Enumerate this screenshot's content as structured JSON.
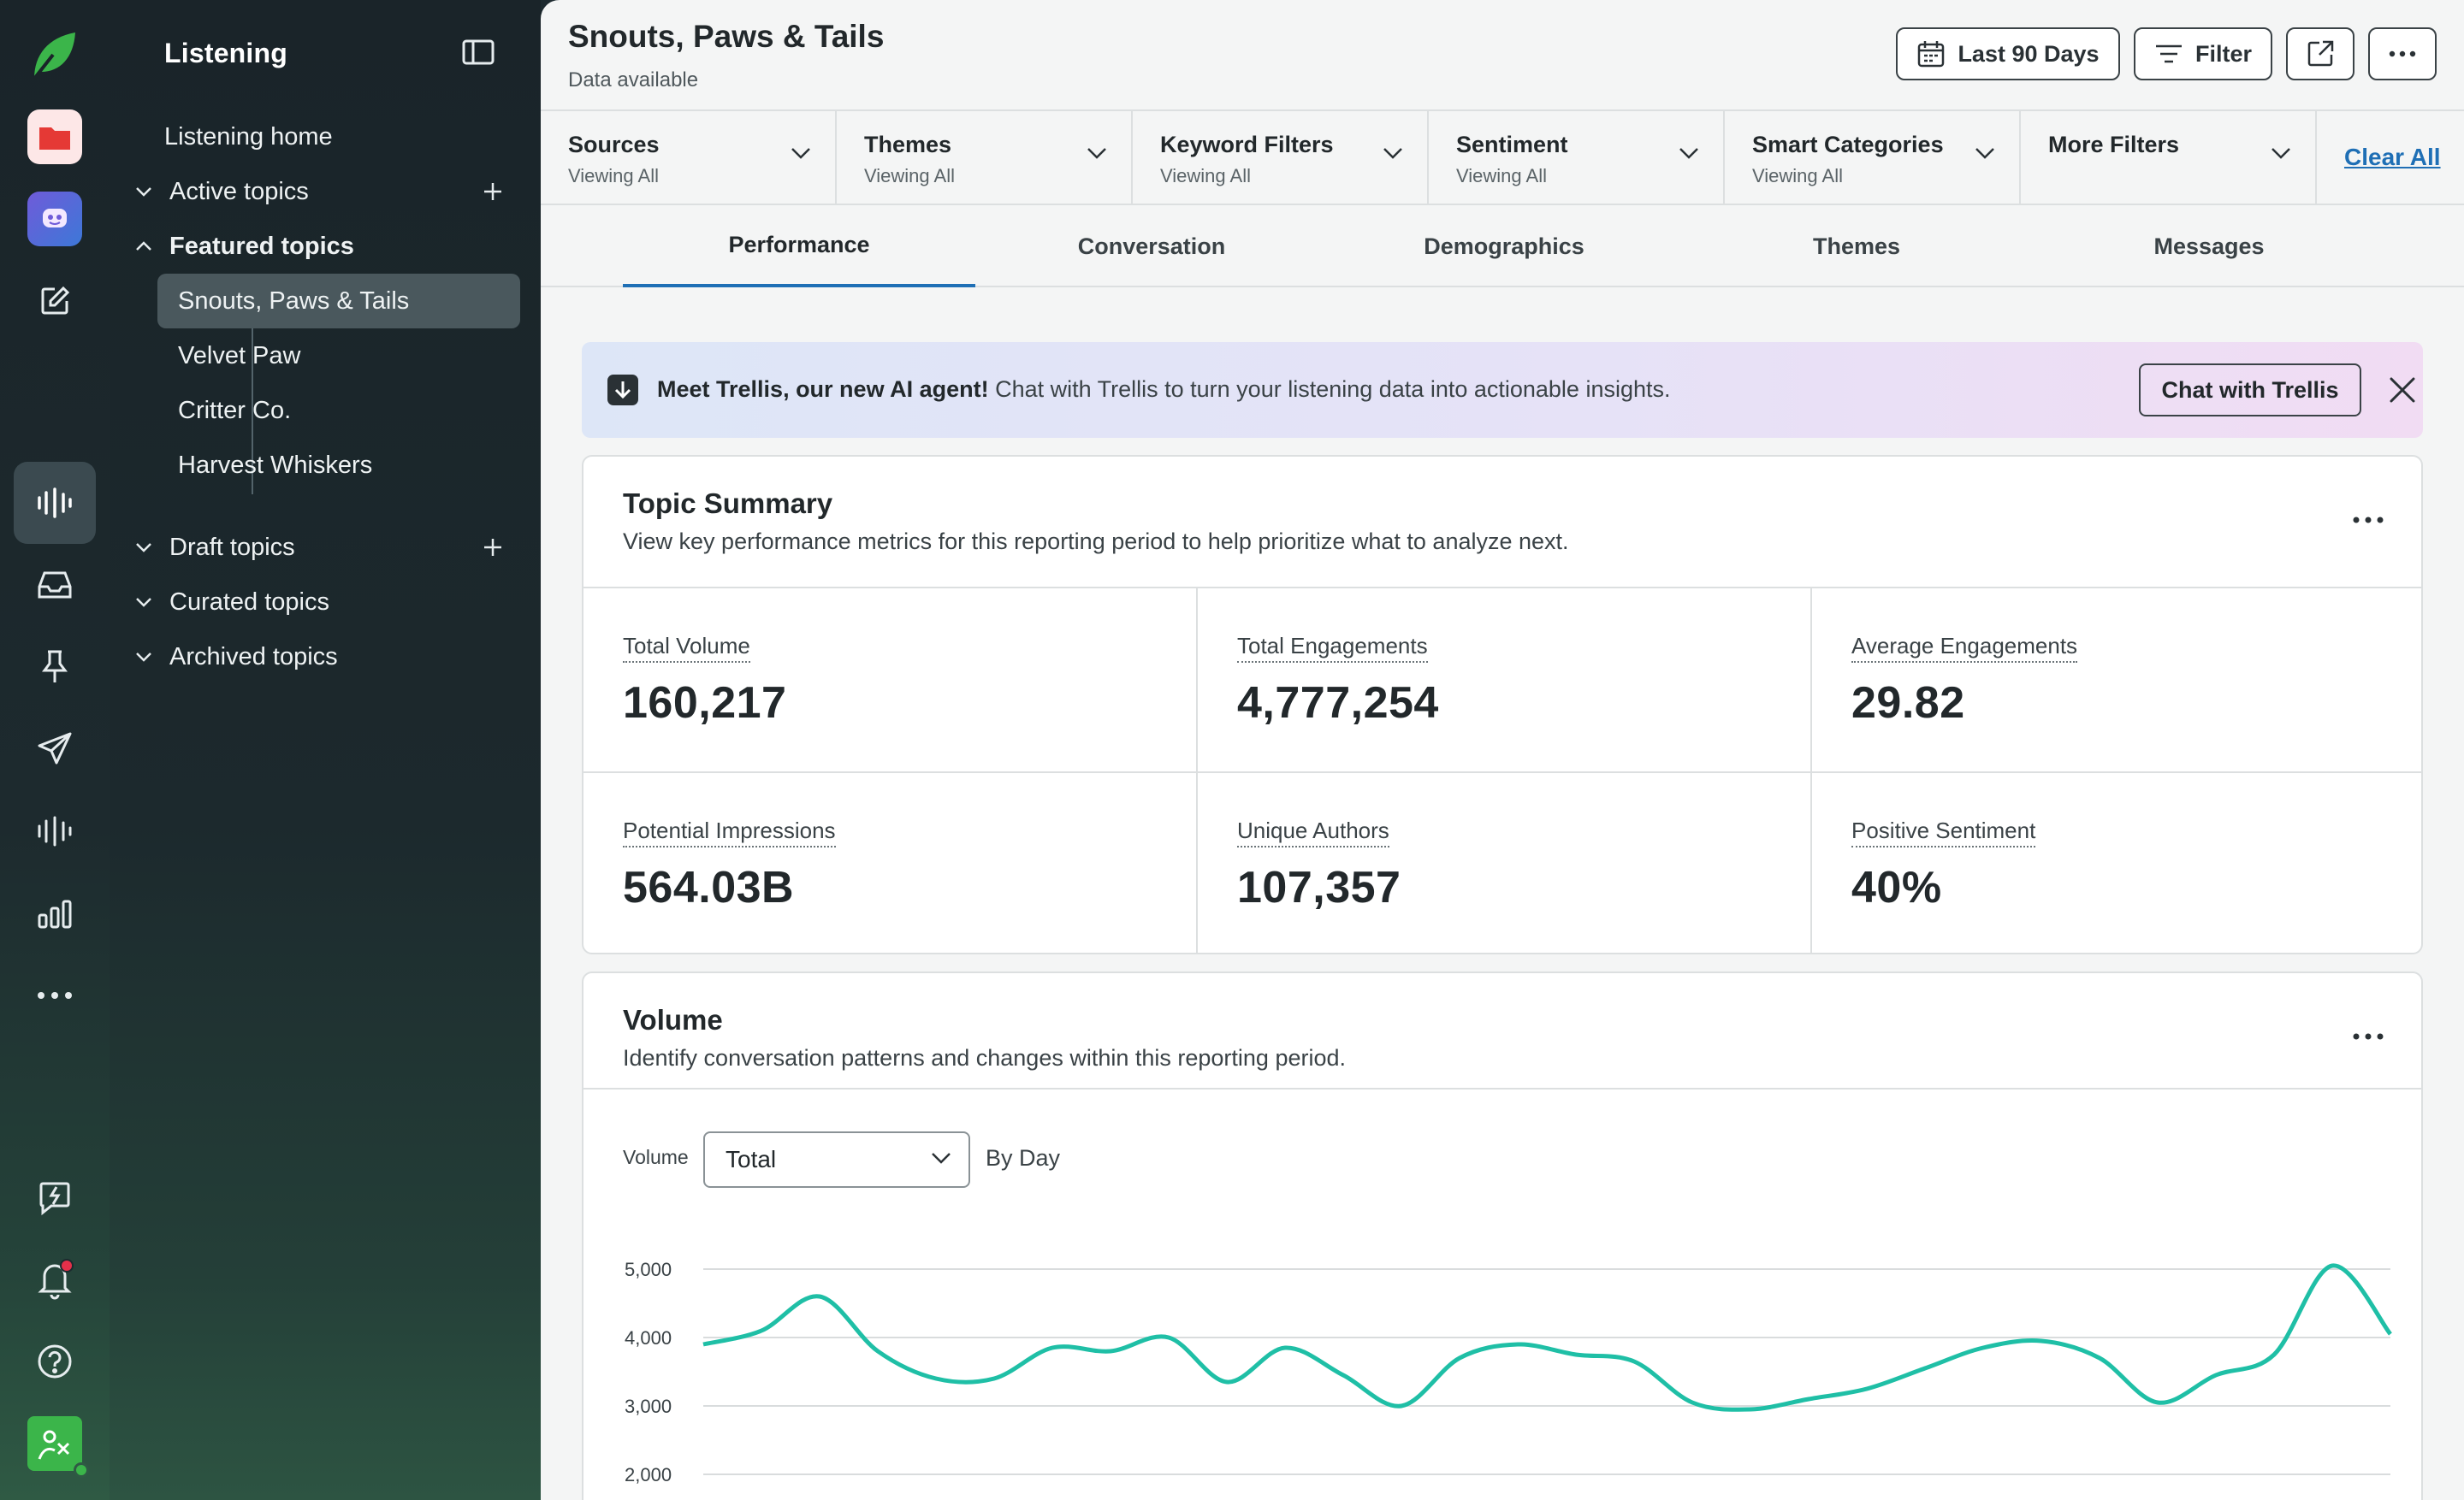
{
  "nav": {
    "title": "Listening",
    "home": "Listening home",
    "active_topics": "Active topics",
    "featured_topics": "Featured topics",
    "featured_items": [
      "Snouts, Paws & Tails",
      "Velvet Paw",
      "Critter Co.",
      "Harvest Whiskers"
    ],
    "draft_topics": "Draft topics",
    "curated_topics": "Curated topics",
    "archived_topics": "Archived topics"
  },
  "header": {
    "title": "Snouts, Paws & Tails",
    "subtitle": "Data available",
    "date_range": "Last 90 Days",
    "filter": "Filter"
  },
  "filters": [
    {
      "label": "Sources",
      "value": "Viewing All"
    },
    {
      "label": "Themes",
      "value": "Viewing All"
    },
    {
      "label": "Keyword Filters",
      "value": "Viewing All"
    },
    {
      "label": "Sentiment",
      "value": "Viewing All"
    },
    {
      "label": "Smart Categories",
      "value": "Viewing All"
    },
    {
      "label": "More Filters",
      "value": ""
    }
  ],
  "clear_all": "Clear All",
  "tabs": [
    "Performance",
    "Conversation",
    "Demographics",
    "Themes",
    "Messages"
  ],
  "active_tab": "Performance",
  "banner": {
    "bold": "Meet Trellis, our new AI agent!",
    "text": " Chat with Trellis to turn your listening data into actionable insights.",
    "button": "Chat with Trellis"
  },
  "topic_summary": {
    "title": "Topic Summary",
    "description": "View key performance metrics for this reporting period to help prioritize what to analyze next.",
    "metrics": [
      {
        "label": "Total Volume",
        "value": "160,217"
      },
      {
        "label": "Total Engagements",
        "value": "4,777,254"
      },
      {
        "label": "Average Engagements",
        "value": "29.82"
      },
      {
        "label": "Potential Impressions",
        "value": "564.03B"
      },
      {
        "label": "Unique Authors",
        "value": "107,357"
      },
      {
        "label": "Positive Sentiment",
        "value": "40%"
      }
    ]
  },
  "volume": {
    "title": "Volume",
    "description": "Identify conversation patterns and changes within this reporting period.",
    "control_label": "Volume",
    "select_value": "Total",
    "granularity": "By Day"
  },
  "colors": {
    "accent_blue": "#1f6fb5",
    "line": "#1fbfa6",
    "brand_green": "#3bb54a",
    "notification_dot": "#e5304a"
  },
  "chart_data": {
    "type": "line",
    "ylim": [
      2000,
      5000
    ],
    "yticks": [
      "5,000",
      "4,000",
      "3,000",
      "2,000"
    ],
    "ytick_values": [
      5000,
      4000,
      3000,
      2000
    ],
    "series": [
      {
        "values": [
          3900,
          4100,
          4600,
          3800,
          3400,
          3400,
          3850,
          3800,
          4000,
          3350,
          3850,
          3450,
          3000,
          3700,
          3900,
          3750,
          3650,
          3050,
          2950,
          3100,
          3250,
          3550,
          3850,
          3950,
          3700,
          3050,
          3450,
          3750,
          5050,
          4050
        ]
      }
    ]
  }
}
